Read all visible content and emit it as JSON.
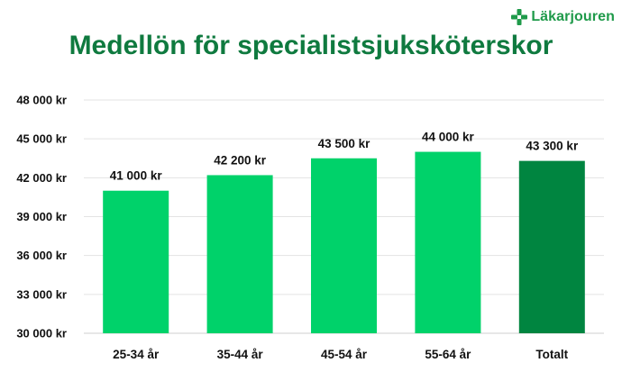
{
  "brand": {
    "name": "Läkarjouren",
    "color": "#1f9a4a"
  },
  "chart_data": {
    "type": "bar",
    "title": "Medellön för specialistsjuksköterskor",
    "xlabel": "",
    "ylabel": "",
    "ylim": [
      30000,
      48000
    ],
    "y_ticks": [
      30000,
      33000,
      36000,
      39000,
      42000,
      45000,
      48000
    ],
    "y_tick_labels": [
      "30 000 kr",
      "33 000 kr",
      "36 000 kr",
      "39 000 kr",
      "42 000 kr",
      "45 000 kr",
      "48 000 kr"
    ],
    "categories": [
      "25-34 år",
      "35-44 år",
      "45-54 år",
      "55-64 år",
      "Totalt"
    ],
    "values": [
      41000,
      42200,
      43500,
      44000,
      43300
    ],
    "data_labels": [
      "41 000 kr",
      "42 200 kr",
      "43 500 kr",
      "44 000 kr",
      "43 300 kr"
    ],
    "colors": [
      "#00d26a",
      "#00d26a",
      "#00d26a",
      "#00d26a",
      "#008540"
    ],
    "grid": true,
    "title_color": "#0f7a3f"
  }
}
